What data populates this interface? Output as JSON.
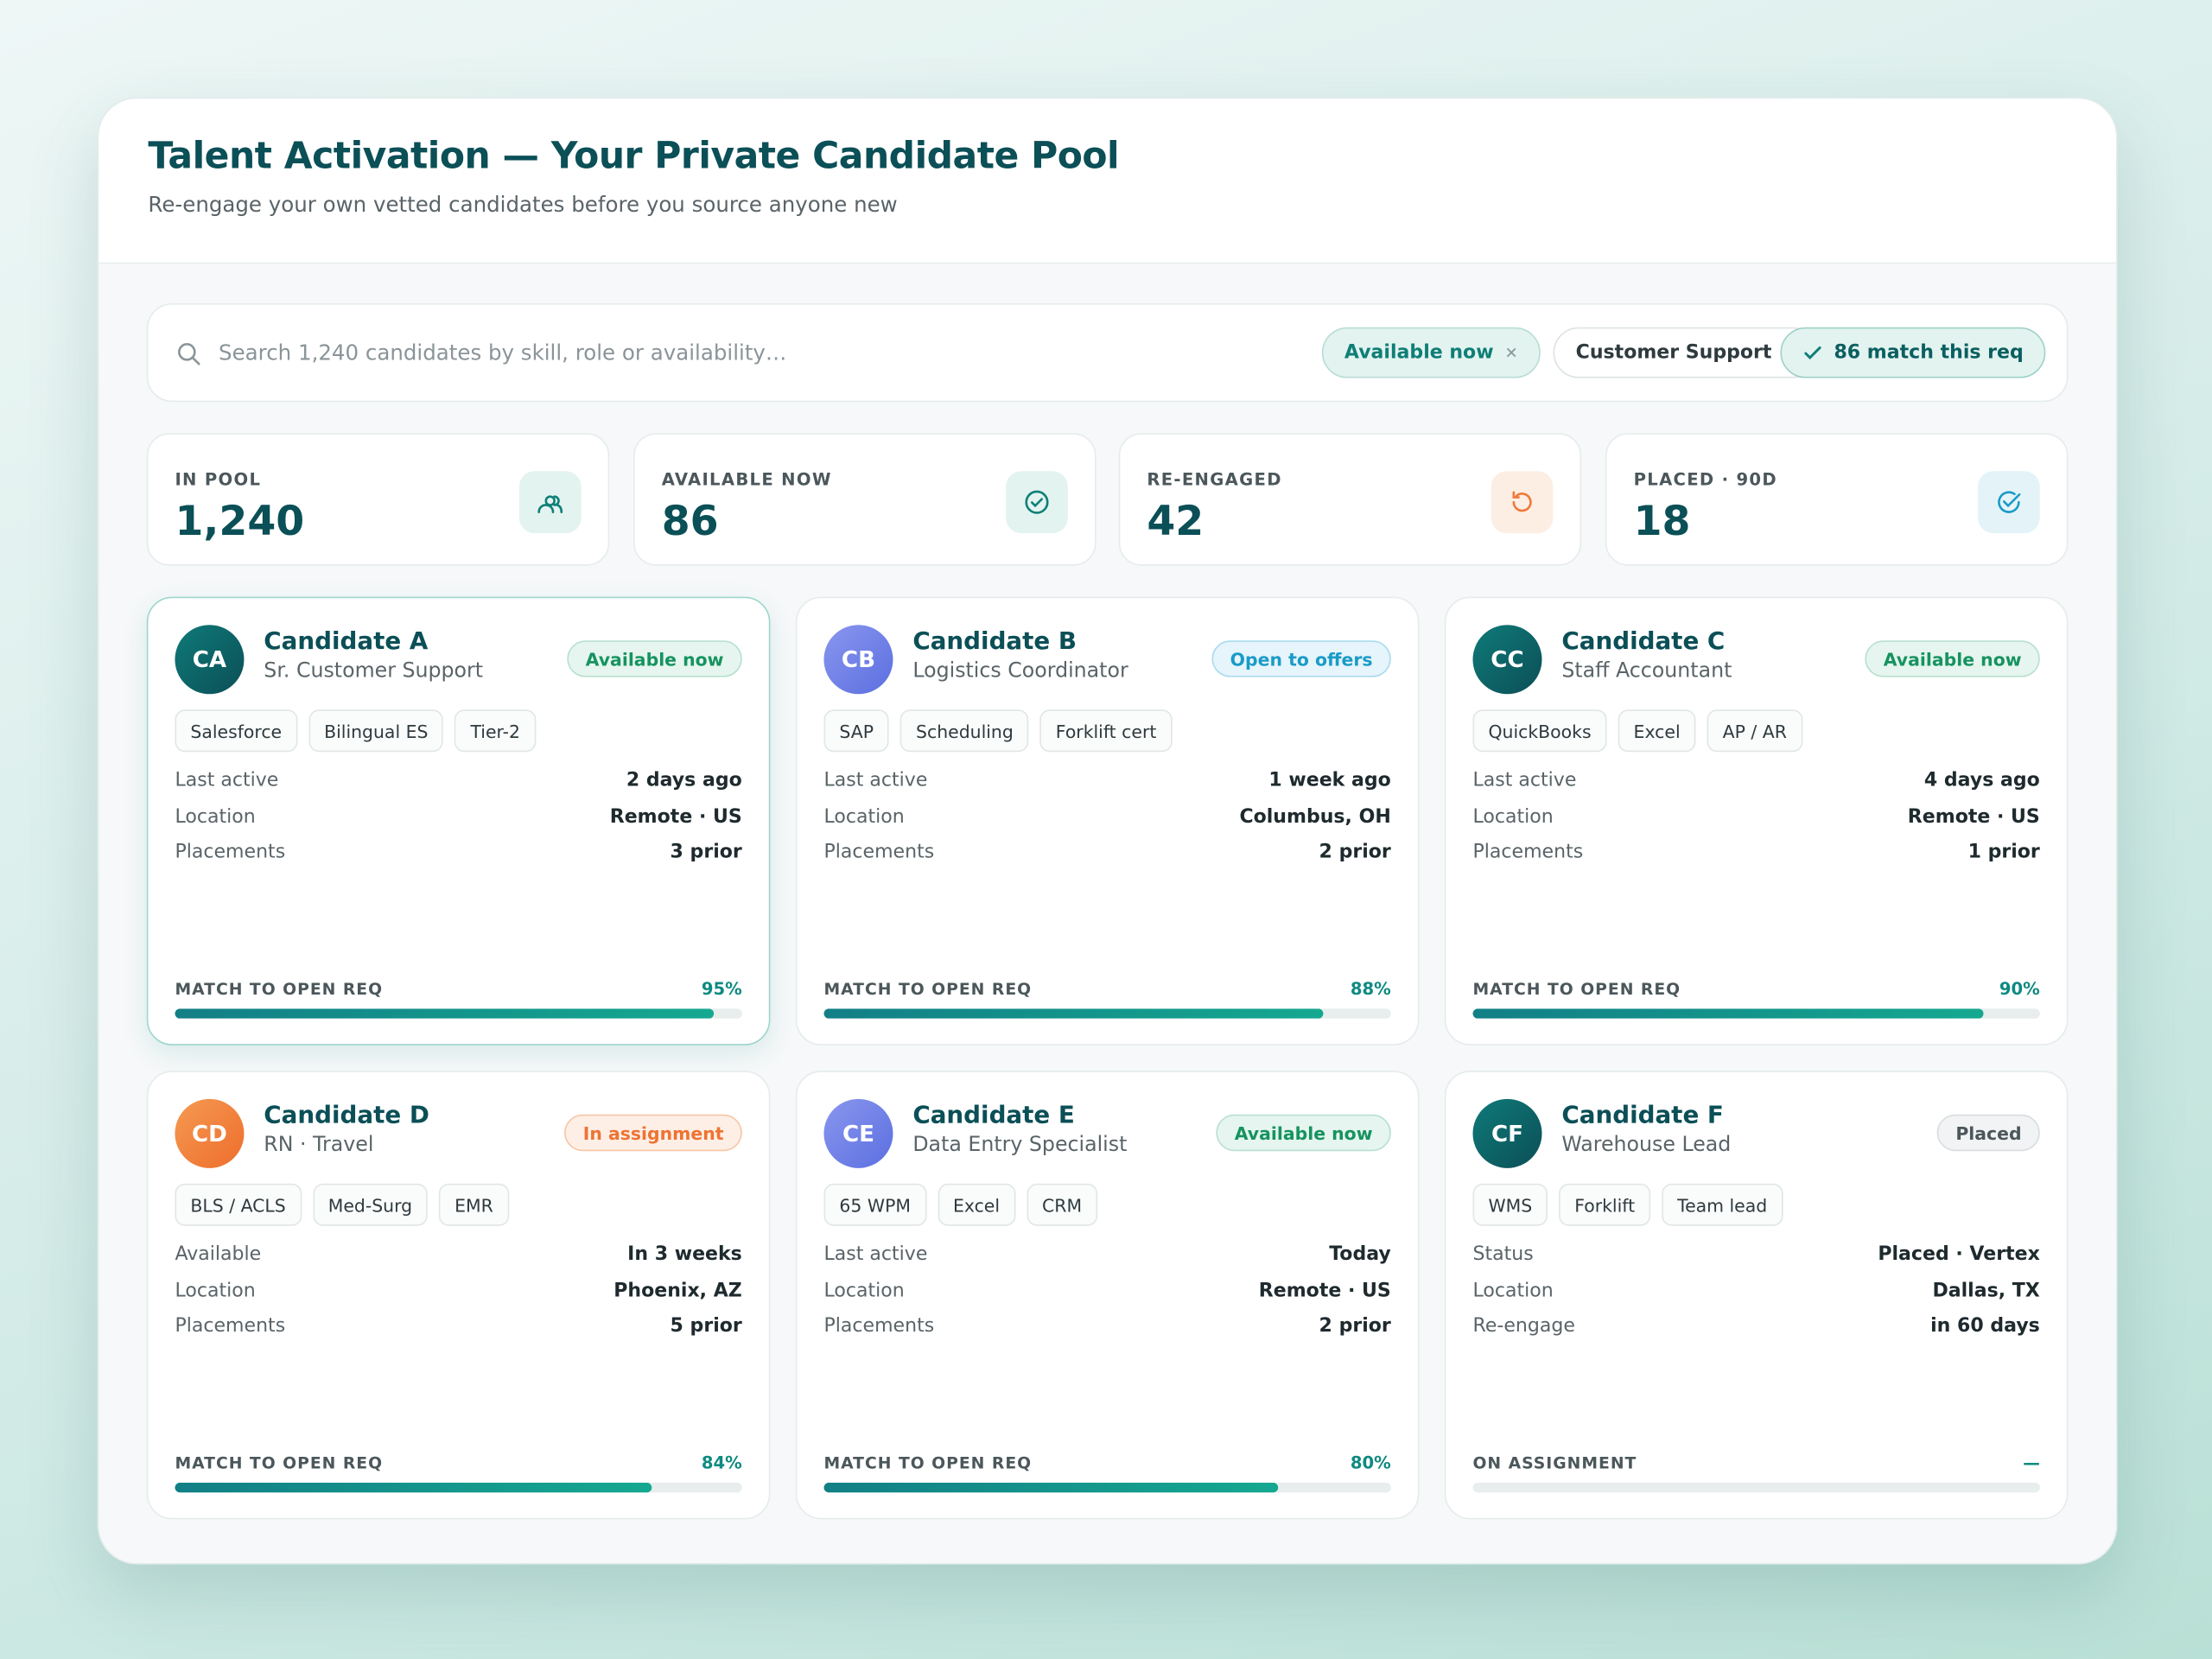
{
  "header": {
    "title": "Talent Activation — Your Private Candidate Pool",
    "subtitle": "Re-engage your own vetted candidates before you source anyone new"
  },
  "search": {
    "placeholder": "Search 1,240 candidates by skill, role or availability…",
    "filters": [
      "Available now",
      "Customer Support"
    ],
    "match_chip": "86 match this req"
  },
  "stats": [
    {
      "label": "IN POOL",
      "value": "1,240"
    },
    {
      "label": "AVAILABLE NOW",
      "value": "86"
    },
    {
      "label": "RE-ENGAGED",
      "value": "42"
    },
    {
      "label": "PLACED · 90D",
      "value": "18"
    }
  ],
  "candidates": [
    {
      "initials": "CA",
      "name": "Candidate A",
      "role": "Sr. Customer Support",
      "status": "Available now",
      "tags": [
        "Salesforce",
        "Bilingual ES",
        "Tier-2"
      ],
      "details": [
        {
          "label": "Last active",
          "value": "2 days ago"
        },
        {
          "label": "Location",
          "value": "Remote · US"
        },
        {
          "label": "Placements",
          "value": "3 prior"
        }
      ],
      "match_label": "MATCH TO OPEN REQ",
      "match": {
        "value": 95,
        "label": "95%"
      }
    },
    {
      "initials": "CB",
      "name": "Candidate B",
      "role": "Logistics Coordinator",
      "status": "Open to offers",
      "tags": [
        "SAP",
        "Scheduling",
        "Forklift cert"
      ],
      "details": [
        {
          "label": "Last active",
          "value": "1 week ago"
        },
        {
          "label": "Location",
          "value": "Columbus, OH"
        },
        {
          "label": "Placements",
          "value": "2 prior"
        }
      ],
      "match_label": "MATCH TO OPEN REQ",
      "match": {
        "value": 88,
        "label": "88%"
      }
    },
    {
      "initials": "CC",
      "name": "Candidate C",
      "role": "Staff Accountant",
      "status": "Available now",
      "tags": [
        "QuickBooks",
        "Excel",
        "AP / AR"
      ],
      "details": [
        {
          "label": "Last active",
          "value": "4 days ago"
        },
        {
          "label": "Location",
          "value": "Remote · US"
        },
        {
          "label": "Placements",
          "value": "1 prior"
        }
      ],
      "match_label": "MATCH TO OPEN REQ",
      "match": {
        "value": 90,
        "label": "90%"
      }
    },
    {
      "initials": "CD",
      "name": "Candidate D",
      "role": "RN · Travel",
      "status": "In assignment",
      "tags": [
        "BLS / ACLS",
        "Med-Surg",
        "EMR"
      ],
      "details": [
        {
          "label": "Available",
          "value": "In 3 weeks"
        },
        {
          "label": "Location",
          "value": "Phoenix, AZ"
        },
        {
          "label": "Placements",
          "value": "5 prior"
        }
      ],
      "match_label": "MATCH TO OPEN REQ",
      "match": {
        "value": 84,
        "label": "84%"
      }
    },
    {
      "initials": "CE",
      "name": "Candidate E",
      "role": "Data Entry Specialist",
      "status": "Available now",
      "tags": [
        "65 WPM",
        "Excel",
        "CRM"
      ],
      "details": [
        {
          "label": "Last active",
          "value": "Today"
        },
        {
          "label": "Location",
          "value": "Remote · US"
        },
        {
          "label": "Placements",
          "value": "2 prior"
        }
      ],
      "match_label": "MATCH TO OPEN REQ",
      "match": {
        "value": 80,
        "label": "80%"
      }
    },
    {
      "initials": "CF",
      "name": "Candidate F",
      "role": "Warehouse Lead",
      "status": "Placed",
      "tags": [
        "WMS",
        "Forklift",
        "Team lead"
      ],
      "details": [
        {
          "label": "Status",
          "value": "Placed · Vertex"
        },
        {
          "label": "Location",
          "value": "Dallas, TX"
        },
        {
          "label": "Re-engage",
          "value": "in 60 days"
        }
      ],
      "match_label": "ON ASSIGNMENT",
      "match": {
        "label": "—"
      }
    }
  ]
}
